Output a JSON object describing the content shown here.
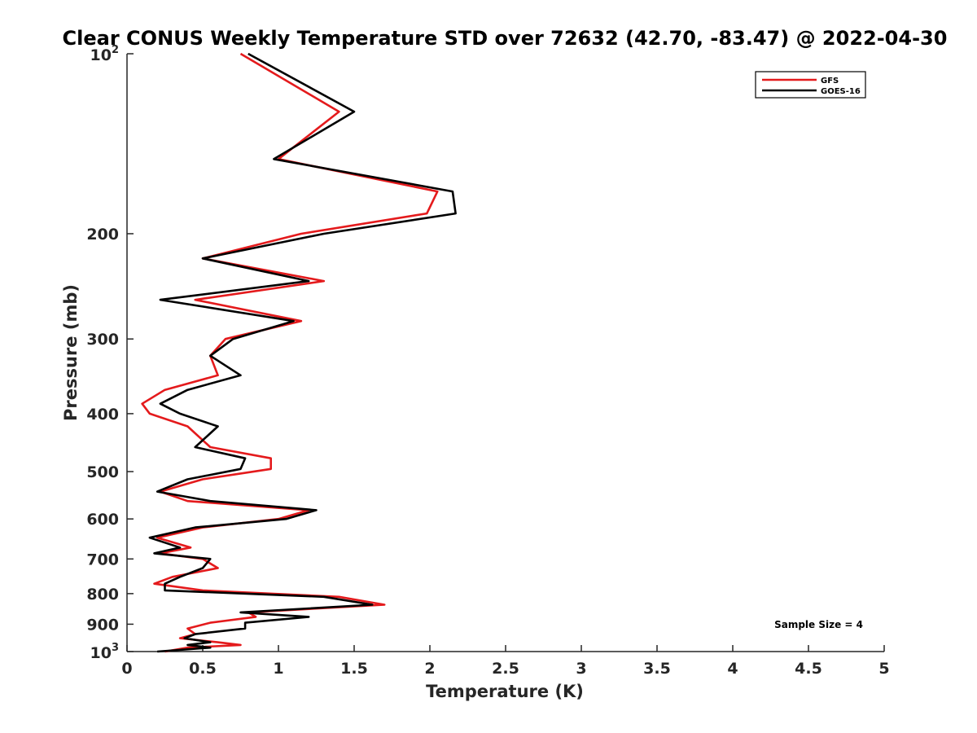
{
  "chart_data": {
    "type": "line",
    "title": "Clear CONUS Weekly Temperature STD over 72632 (42.70, -83.47) @ 2022-04-30",
    "xlabel": "Temperature (K)",
    "ylabel": "Pressure (mb)",
    "xlim": [
      0,
      5
    ],
    "ylim": [
      1000,
      100
    ],
    "y_scale": "log",
    "y_reversed": true,
    "x_ticks": [
      "0",
      "0.5",
      "1",
      "1.5",
      "2",
      "2.5",
      "3",
      "3.5",
      "4",
      "4.5",
      "5"
    ],
    "x_tick_values": [
      0,
      0.5,
      1,
      1.5,
      2,
      2.5,
      3,
      3.5,
      4,
      4.5,
      5
    ],
    "y_tick_values": [
      200,
      300,
      400,
      500,
      600,
      700,
      800,
      900
    ],
    "y_ticks": [
      "200",
      "300",
      "400",
      "500",
      "600",
      "700",
      "800",
      "900"
    ],
    "y_top_label": {
      "base": "10",
      "exp": "2"
    },
    "y_bottom_label": {
      "base": "10",
      "exp": "3"
    },
    "grid": false,
    "legend_position": "top-right",
    "annotation": "Sample Size = 4",
    "series": [
      {
        "name": "GFS",
        "color": "#e41a1c",
        "points": [
          [
            0.75,
            100
          ],
          [
            1.4,
            125
          ],
          [
            1.0,
            150
          ],
          [
            2.05,
            170
          ],
          [
            1.98,
            185
          ],
          [
            1.15,
            200
          ],
          [
            0.5,
            220
          ],
          [
            1.3,
            240
          ],
          [
            0.45,
            258
          ],
          [
            1.15,
            280
          ],
          [
            0.65,
            300
          ],
          [
            0.55,
            320
          ],
          [
            0.6,
            345
          ],
          [
            0.25,
            365
          ],
          [
            0.1,
            385
          ],
          [
            0.15,
            400
          ],
          [
            0.4,
            420
          ],
          [
            0.55,
            455
          ],
          [
            0.95,
            475
          ],
          [
            0.95,
            495
          ],
          [
            0.5,
            515
          ],
          [
            0.22,
            540
          ],
          [
            0.4,
            560
          ],
          [
            1.2,
            580
          ],
          [
            1.0,
            600
          ],
          [
            0.5,
            620
          ],
          [
            0.2,
            645
          ],
          [
            0.42,
            670
          ],
          [
            0.22,
            685
          ],
          [
            0.5,
            700
          ],
          [
            0.6,
            725
          ],
          [
            0.3,
            750
          ],
          [
            0.18,
            770
          ],
          [
            0.5,
            790
          ],
          [
            1.4,
            810
          ],
          [
            1.7,
            835
          ],
          [
            0.8,
            860
          ],
          [
            0.85,
            875
          ],
          [
            0.55,
            895
          ],
          [
            0.4,
            915
          ],
          [
            0.45,
            935
          ],
          [
            0.35,
            950
          ],
          [
            0.6,
            965
          ],
          [
            0.75,
            975
          ],
          [
            0.4,
            985
          ],
          [
            0.25,
            1000
          ]
        ]
      },
      {
        "name": "GOES-16",
        "color": "#000000",
        "points": [
          [
            0.8,
            100
          ],
          [
            1.5,
            125
          ],
          [
            0.97,
            150
          ],
          [
            2.15,
            170
          ],
          [
            2.17,
            185
          ],
          [
            1.3,
            200
          ],
          [
            0.5,
            220
          ],
          [
            1.2,
            240
          ],
          [
            0.22,
            258
          ],
          [
            1.1,
            280
          ],
          [
            0.7,
            300
          ],
          [
            0.55,
            320
          ],
          [
            0.75,
            345
          ],
          [
            0.4,
            365
          ],
          [
            0.22,
            385
          ],
          [
            0.35,
            400
          ],
          [
            0.6,
            420
          ],
          [
            0.45,
            455
          ],
          [
            0.78,
            475
          ],
          [
            0.75,
            495
          ],
          [
            0.4,
            515
          ],
          [
            0.2,
            540
          ],
          [
            0.55,
            560
          ],
          [
            1.25,
            580
          ],
          [
            1.05,
            600
          ],
          [
            0.45,
            620
          ],
          [
            0.15,
            645
          ],
          [
            0.35,
            670
          ],
          [
            0.18,
            685
          ],
          [
            0.55,
            700
          ],
          [
            0.5,
            725
          ],
          [
            0.35,
            750
          ],
          [
            0.25,
            770
          ],
          [
            0.25,
            790
          ],
          [
            1.3,
            810
          ],
          [
            1.62,
            835
          ],
          [
            0.75,
            860
          ],
          [
            1.2,
            875
          ],
          [
            0.78,
            895
          ],
          [
            0.78,
            915
          ],
          [
            0.45,
            935
          ],
          [
            0.38,
            950
          ],
          [
            0.55,
            965
          ],
          [
            0.4,
            975
          ],
          [
            0.55,
            985
          ],
          [
            0.2,
            1000
          ]
        ]
      }
    ]
  }
}
